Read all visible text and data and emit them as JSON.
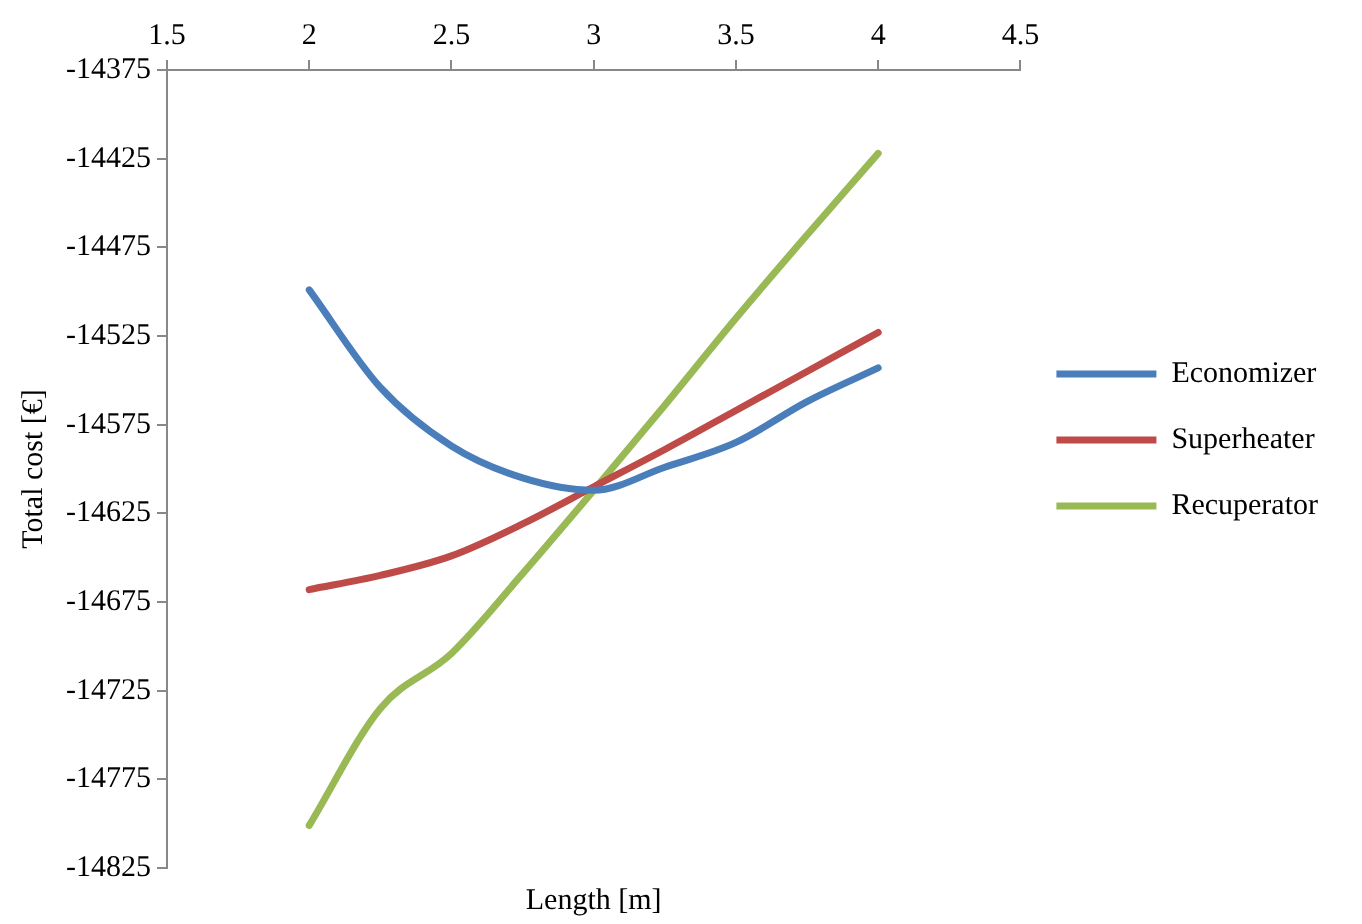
{
  "chart_data": {
    "type": "line",
    "xlabel": "Length [m]",
    "ylabel": "Total cost [€]",
    "xlim": [
      1.5,
      4.5
    ],
    "xticks": [
      1.5,
      2,
      2.5,
      3,
      3.5,
      4,
      4.5
    ],
    "ylim": [
      -14825,
      -14375
    ],
    "yticks": [
      -14825,
      -14775,
      -14725,
      -14675,
      -14625,
      -14575,
      -14525,
      -14475,
      -14425,
      -14375
    ],
    "grid": false,
    "legend": "right",
    "marker": "none",
    "line_style": "solid",
    "series": [
      {
        "name": "Economizer",
        "color": "#4a7ebb",
        "x": [
          2,
          2.25,
          2.5,
          2.75,
          3,
          3.25,
          3.5,
          3.75,
          4
        ],
        "values": [
          -14499,
          -14554,
          -14587,
          -14605,
          -14612,
          -14599,
          -14585,
          -14562,
          -14543
        ]
      },
      {
        "name": "Superheater",
        "color": "#be4b48",
        "x": [
          2,
          2.25,
          2.5,
          2.75,
          3,
          3.25,
          3.5,
          3.75,
          4
        ],
        "values": [
          -14668,
          -14660,
          -14649,
          -14631,
          -14610,
          -14589,
          -14567,
          -14545,
          -14523
        ]
      },
      {
        "name": "Recuperator",
        "color": "#98b954",
        "x": [
          2,
          2.25,
          2.5,
          2.75,
          3,
          3.25,
          3.5,
          3.75,
          4
        ],
        "values": [
          -14801,
          -14735,
          -14704,
          -14659,
          -14612,
          -14564,
          -14515,
          -14468,
          -14422
        ]
      }
    ]
  }
}
